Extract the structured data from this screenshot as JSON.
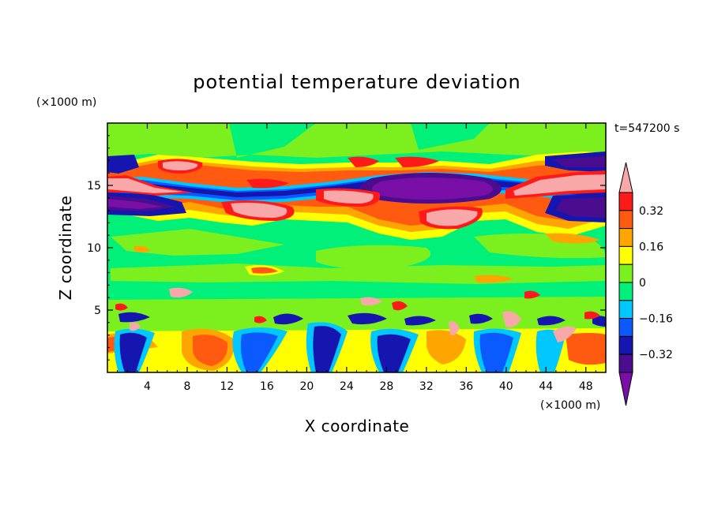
{
  "chart_data": {
    "type": "heatmap",
    "title": "potential temperature deviation",
    "xlabel": "X coordinate",
    "ylabel": "Z coordinate",
    "x_unit": "(×1000 m)",
    "y_unit": "(×1000 m)",
    "time_label": "t=547200 s",
    "xlim": [
      0,
      50
    ],
    "ylim": [
      0,
      20
    ],
    "x_ticks": [
      4,
      8,
      12,
      16,
      20,
      24,
      28,
      32,
      36,
      40,
      44,
      48
    ],
    "y_ticks": [
      5,
      10,
      15
    ],
    "x_tick_labels": [
      "4",
      "8",
      "12",
      "16",
      "20",
      "24",
      "28",
      "32",
      "36",
      "40",
      "44",
      "48"
    ],
    "y_tick_labels": [
      "5",
      "10",
      "15"
    ],
    "colorbar": {
      "levels": [
        -0.48,
        -0.4,
        -0.32,
        -0.24,
        -0.16,
        -0.08,
        0,
        0.08,
        0.16,
        0.24,
        0.32,
        0.4
      ],
      "labels": [
        "0.32",
        "0.16",
        "0",
        "−0.16",
        "−0.32"
      ],
      "label_values": [
        0.32,
        0.16,
        0,
        -0.16,
        -0.32
      ],
      "colors": [
        "#7a0fa8",
        "#4b0d8f",
        "#1515b0",
        "#0a5aff",
        "#00c8ff",
        "#00f07a",
        "#7cf01e",
        "#ffff00",
        "#ffa500",
        "#ff5a10",
        "#ff1a1a",
        "#f8a8a8"
      ],
      "extend": "both"
    },
    "background_level": "#00f07a",
    "grid": false
  }
}
